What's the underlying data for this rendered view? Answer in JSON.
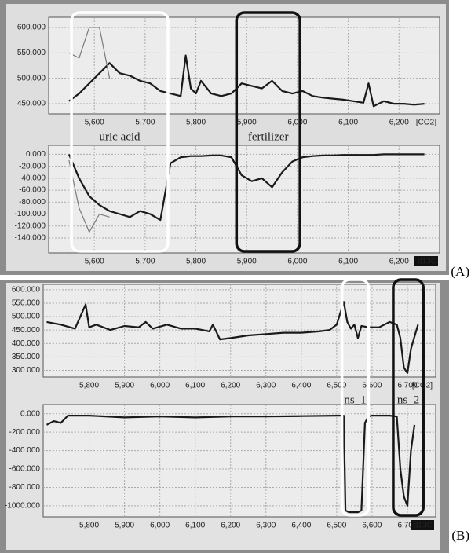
{
  "chart_data": [
    {
      "type": "line",
      "x": [
        5550,
        5570,
        5590,
        5610,
        5630,
        5650,
        5670,
        5690,
        5710,
        5730,
        5750,
        5770,
        5780,
        5790,
        5800,
        5810,
        5830,
        5850,
        5870,
        5890,
        5910,
        5930,
        5950,
        5970,
        5990,
        6010,
        6030,
        6050,
        6070,
        6090,
        6110,
        6130,
        6140,
        6150,
        6170,
        6190,
        6210,
        6230,
        6250
      ],
      "series": [
        {
          "color": "#1a1a1a",
          "values": [
            455,
            470,
            490,
            510,
            530,
            510,
            505,
            495,
            490,
            475,
            470,
            465,
            545,
            480,
            470,
            495,
            470,
            465,
            470,
            490,
            485,
            480,
            495,
            475,
            470,
            475,
            465,
            462,
            460,
            458,
            455,
            452,
            490,
            445,
            455,
            450,
            450,
            448,
            450
          ]
        },
        {
          "color": "#7a7a7a",
          "values": [
            550,
            540,
            600,
            600,
            500,
            null,
            null,
            null,
            null,
            null,
            null,
            null,
            null,
            null,
            null,
            null,
            null,
            null,
            null,
            null,
            null,
            null,
            null,
            null,
            null,
            null,
            null,
            null,
            null,
            null,
            null,
            null,
            null,
            null,
            null,
            null,
            null,
            null,
            null
          ]
        }
      ],
      "xlim": [
        5510,
        6280
      ],
      "ylim": [
        430,
        620
      ],
      "xticks": [
        {
          "value": 5600,
          "label": "5,600"
        },
        {
          "value": 5700,
          "label": "5,700"
        },
        {
          "value": 5800,
          "label": "5,800"
        },
        {
          "value": 5900,
          "label": "5,900"
        },
        {
          "value": 6000,
          "label": "6,000"
        },
        {
          "value": 6100,
          "label": "6,100"
        },
        {
          "value": 6200,
          "label": "6,200"
        }
      ],
      "yticks": [
        {
          "value": 450,
          "label": "450.000"
        },
        {
          "value": 500,
          "label": "500.000"
        },
        {
          "value": 550,
          "label": "550.000"
        },
        {
          "value": 600,
          "label": "600.000"
        }
      ],
      "grid": true,
      "corner_label": "[CO2]",
      "highlights": [
        {
          "label": "uric acid",
          "x": [
            5555,
            5745
          ],
          "color": "#ffffff"
        },
        {
          "label": "fertilizer",
          "x": [
            5880,
            6005
          ],
          "color": "#111111"
        }
      ]
    },
    {
      "type": "line",
      "x": [
        5550,
        5570,
        5590,
        5610,
        5630,
        5650,
        5670,
        5690,
        5710,
        5730,
        5750,
        5770,
        5780,
        5790,
        5800,
        5810,
        5830,
        5850,
        5870,
        5890,
        5910,
        5930,
        5950,
        5970,
        5990,
        6010,
        6030,
        6050,
        6070,
        6090,
        6110,
        6130,
        6140,
        6150,
        6170,
        6190,
        6210,
        6230,
        6250
      ],
      "series": [
        {
          "color": "#1a1a1a",
          "values": [
            0,
            -40,
            -70,
            -85,
            -95,
            -100,
            -105,
            -95,
            -100,
            -110,
            -15,
            -5,
            -4,
            -3,
            -3,
            -3,
            -2,
            -2,
            -5,
            -35,
            -45,
            -40,
            -55,
            -30,
            -12,
            -5,
            -3,
            -2,
            -2,
            -1,
            -1,
            -1,
            -1,
            -1,
            0,
            0,
            0,
            0,
            0
          ]
        },
        {
          "color": "#7a7a7a",
          "values": [
            -10,
            -90,
            -130,
            -100,
            -105,
            null,
            null,
            null,
            null,
            null,
            null,
            null,
            null,
            null,
            null,
            null,
            null,
            null,
            null,
            null,
            null,
            null,
            null,
            null,
            null,
            null,
            null,
            null,
            null,
            null,
            null,
            null,
            null,
            null,
            null,
            null,
            null,
            null,
            null
          ]
        }
      ],
      "xlim": [
        5510,
        6280
      ],
      "ylim": [
        -165,
        15
      ],
      "xticks": [
        {
          "value": 5600,
          "label": "5,600"
        },
        {
          "value": 5700,
          "label": "5,700"
        },
        {
          "value": 5800,
          "label": "5,800"
        },
        {
          "value": 5900,
          "label": "5,900"
        },
        {
          "value": 6000,
          "label": "6,000"
        },
        {
          "value": 6100,
          "label": "6,100"
        },
        {
          "value": 6200,
          "label": "6,200"
        }
      ],
      "yticks": [
        {
          "value": 0,
          "label": "0.000"
        },
        {
          "value": -20,
          "label": "-20.000"
        },
        {
          "value": -40,
          "label": "-40.000"
        },
        {
          "value": -60,
          "label": "-60.000"
        },
        {
          "value": -80,
          "label": "-80.000"
        },
        {
          "value": -100,
          "label": "-100.000"
        },
        {
          "value": -120,
          "label": "-120.000"
        },
        {
          "value": -140,
          "label": "-140.000"
        }
      ],
      "grid": true,
      "corner_label": "d13C",
      "panel_label": "(A)"
    },
    {
      "type": "line",
      "x": [
        5680,
        5720,
        5760,
        5790,
        5800,
        5820,
        5860,
        5900,
        5940,
        5960,
        5980,
        6020,
        6060,
        6100,
        6140,
        6150,
        6170,
        6200,
        6250,
        6300,
        6350,
        6400,
        6450,
        6480,
        6500,
        6520,
        6530,
        6540,
        6550,
        6560,
        6570,
        6590,
        6620,
        6650,
        6670,
        6680,
        6690,
        6700,
        6710,
        6730
      ],
      "series": [
        {
          "color": "#1a1a1a",
          "values": [
            480,
            470,
            455,
            545,
            460,
            470,
            450,
            465,
            460,
            480,
            455,
            470,
            455,
            455,
            445,
            470,
            415,
            420,
            430,
            435,
            440,
            440,
            445,
            450,
            470,
            555,
            480,
            455,
            470,
            420,
            465,
            460,
            460,
            480,
            470,
            420,
            310,
            290,
            380,
            470
          ]
        }
      ],
      "xlim": [
        5670,
        6780
      ],
      "ylim": [
        275,
        620
      ],
      "xticks": [
        {
          "value": 5800,
          "label": "5,800"
        },
        {
          "value": 5900,
          "label": "5,900"
        },
        {
          "value": 6000,
          "label": "6,000"
        },
        {
          "value": 6100,
          "label": "6,100"
        },
        {
          "value": 6200,
          "label": "6,200"
        },
        {
          "value": 6300,
          "label": "6,300"
        },
        {
          "value": 6400,
          "label": "6,400"
        },
        {
          "value": 6500,
          "label": "6,500"
        },
        {
          "value": 6600,
          "label": "6,600"
        },
        {
          "value": 6700,
          "label": "6,700"
        }
      ],
      "yticks": [
        {
          "value": 300,
          "label": "300.000"
        },
        {
          "value": 350,
          "label": "350.000"
        },
        {
          "value": 400,
          "label": "400.000"
        },
        {
          "value": 450,
          "label": "450.000"
        },
        {
          "value": 500,
          "label": "500.000"
        },
        {
          "value": 550,
          "label": "550.000"
        },
        {
          "value": 600,
          "label": "600.000"
        }
      ],
      "grid": true,
      "corner_label": "[CO2]",
      "highlights": [
        {
          "label": "ns_1",
          "x": [
            6515,
            6590
          ],
          "color": "#ffffff"
        },
        {
          "label": "ns_2",
          "x": [
            6660,
            6745
          ],
          "color": "#111111"
        }
      ]
    },
    {
      "type": "line",
      "x": [
        5680,
        5700,
        5720,
        5740,
        5800,
        5900,
        6000,
        6100,
        6200,
        6300,
        6400,
        6500,
        6520,
        6525,
        6535,
        6560,
        6570,
        6580,
        6590,
        6600,
        6650,
        6670,
        6680,
        6690,
        6700,
        6710,
        6720
      ],
      "series": [
        {
          "color": "#1a1a1a",
          "values": [
            -120,
            -80,
            -100,
            -20,
            -20,
            -40,
            -30,
            -40,
            -30,
            -30,
            -25,
            -20,
            -20,
            -1050,
            -1070,
            -1070,
            -1050,
            -100,
            -30,
            -20,
            -20,
            -30,
            -600,
            -900,
            -1000,
            -400,
            -120
          ]
        }
      ],
      "xlim": [
        5670,
        6780
      ],
      "ylim": [
        -1120,
        100
      ],
      "xticks": [
        {
          "value": 5800,
          "label": "5,800"
        },
        {
          "value": 5900,
          "label": "5,900"
        },
        {
          "value": 6000,
          "label": "6,000"
        },
        {
          "value": 6100,
          "label": "6,100"
        },
        {
          "value": 6200,
          "label": "6,200"
        },
        {
          "value": 6300,
          "label": "6,300"
        },
        {
          "value": 6400,
          "label": "6,400"
        },
        {
          "value": 6500,
          "label": "6,500"
        },
        {
          "value": 6600,
          "label": "6,600"
        },
        {
          "value": 6700,
          "label": "6,700"
        }
      ],
      "yticks": [
        {
          "value": 0,
          "label": "0.000"
        },
        {
          "value": -200,
          "label": "-200.000"
        },
        {
          "value": -400,
          "label": "-400.000"
        },
        {
          "value": -600,
          "label": "-600.000"
        },
        {
          "value": -800,
          "label": "-800.000"
        },
        {
          "value": -1000,
          "label": "-1000.000"
        }
      ],
      "grid": true,
      "corner_label": "d13C",
      "panel_label": "(B)"
    }
  ]
}
